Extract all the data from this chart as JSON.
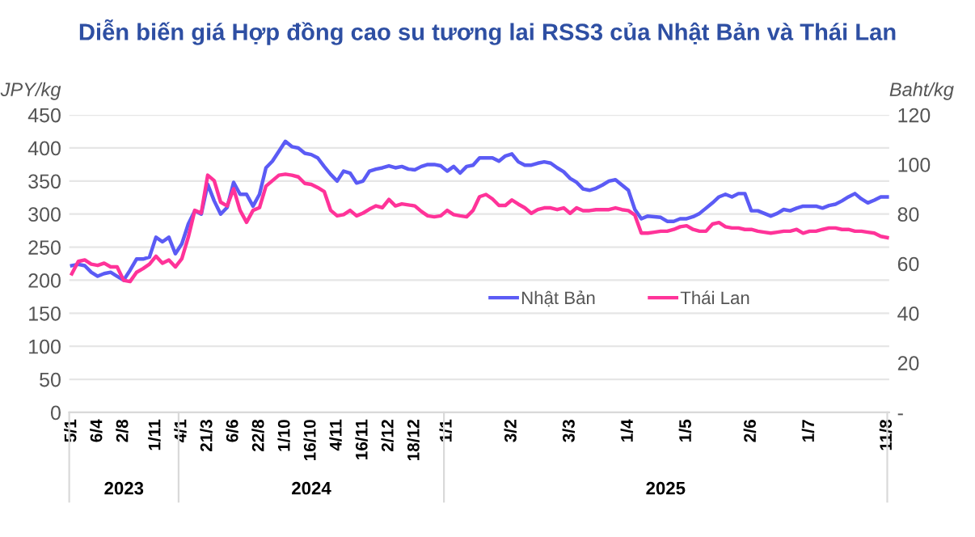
{
  "chart_data": {
    "type": "line",
    "title": "Diễn biến giá Hợp đồng cao su tương lai RSS3 của Nhật Bản và Thái Lan",
    "ylabel": "JPY/kg",
    "y2label": "Baht/kg",
    "categories": [
      "5/1",
      null,
      null,
      null,
      "6/4",
      null,
      null,
      null,
      "2/8",
      null,
      null,
      null,
      null,
      "1/11",
      null,
      null,
      null,
      "4/1",
      null,
      null,
      null,
      "21/3",
      null,
      null,
      null,
      "6/6",
      null,
      null,
      null,
      "22/8",
      null,
      null,
      null,
      "1/10",
      null,
      null,
      null,
      "16/10",
      null,
      null,
      null,
      "4/11",
      null,
      null,
      null,
      "16/11",
      null,
      null,
      null,
      "2/12",
      null,
      null,
      null,
      "18/12",
      null,
      null,
      null,
      null,
      "1/1",
      null,
      null,
      null,
      null,
      null,
      null,
      null,
      null,
      null,
      "3/2",
      null,
      null,
      null,
      null,
      null,
      null,
      null,
      null,
      "3/3",
      null,
      null,
      null,
      null,
      null,
      null,
      null,
      null,
      "1/4",
      null,
      null,
      null,
      null,
      null,
      null,
      null,
      null,
      "1/5",
      null,
      null,
      null,
      null,
      null,
      null,
      null,
      null,
      null,
      "2/6",
      null,
      null,
      null,
      null,
      null,
      null,
      null,
      null,
      "1/7",
      null,
      null,
      null,
      null,
      null,
      null,
      null,
      null,
      null,
      null,
      null,
      "11/8"
    ],
    "annotations": [
      "2023",
      "2024",
      "2025"
    ],
    "series": [
      {
        "name": "Nhật Bản",
        "color": "#5b5bf5",
        "values": [
          222,
          224,
          222,
          212,
          206,
          210,
          212,
          206,
          200,
          215,
          232,
          232,
          235,
          265,
          258,
          265,
          240,
          255,
          285,
          305,
          300,
          345,
          320,
          300,
          310,
          348,
          330,
          330,
          312,
          330,
          370,
          380,
          395,
          410,
          402,
          400,
          392,
          390,
          385,
          372,
          360,
          350,
          365,
          362,
          347,
          350,
          365,
          368,
          370,
          373,
          370,
          372,
          368,
          367,
          372,
          375,
          375,
          373,
          365,
          372,
          362,
          372,
          374,
          385,
          385,
          385,
          380,
          388,
          391,
          379,
          374,
          374,
          377,
          379,
          377,
          370,
          364,
          354,
          348,
          338,
          336,
          339,
          344,
          350,
          352,
          344,
          336,
          307,
          293,
          297,
          296,
          295,
          289,
          289,
          293,
          293,
          296,
          301,
          309,
          317,
          326,
          330,
          326,
          331,
          331,
          305,
          305,
          301,
          297,
          301,
          307,
          305,
          309,
          312,
          312,
          312,
          309,
          313,
          315,
          320,
          326,
          331,
          323,
          317,
          321,
          326,
          326
        ]
      },
      {
        "name": "Thái Lan",
        "color": "#ff3399",
        "axis": "y2",
        "values": [
          55.9,
          60.9,
          61.5,
          59.8,
          59.3,
          60.2,
          58.7,
          58.7,
          53.3,
          52.8,
          56.5,
          58,
          59.8,
          63,
          60.2,
          61.5,
          58.7,
          62,
          70.7,
          81.5,
          80.4,
          95.7,
          93.5,
          84.8,
          83.3,
          90.2,
          81.5,
          76.7,
          81.5,
          82.6,
          91.3,
          93.5,
          95.7,
          96.1,
          95.7,
          95,
          92.4,
          92,
          90.7,
          89.1,
          81.5,
          79.3,
          79.8,
          81.5,
          79.3,
          80.4,
          82,
          83.3,
          82.6,
          85.9,
          83.3,
          84.1,
          83.7,
          83.3,
          81.1,
          79.3,
          78.9,
          79.3,
          81.5,
          79.8,
          79.3,
          78.9,
          81.5,
          87,
          87.9,
          86.1,
          83.5,
          83.5,
          85.7,
          84,
          82.5,
          80.3,
          81.8,
          82.5,
          82.5,
          81.8,
          82.5,
          80.3,
          82.5,
          81.4,
          81.4,
          81.8,
          81.8,
          81.8,
          82.5,
          81.8,
          81.4,
          79.6,
          72.3,
          72.3,
          72.7,
          73.1,
          73.1,
          73.8,
          74.9,
          75.3,
          73.8,
          73.1,
          73.1,
          76,
          76.6,
          74.9,
          74.4,
          74.4,
          73.8,
          73.8,
          73.1,
          72.7,
          72.3,
          72.7,
          73.1,
          73.1,
          73.8,
          72.3,
          73.1,
          73.1,
          73.8,
          74.4,
          74.4,
          73.8,
          73.8,
          73.1,
          73.1,
          72.7,
          72.3,
          71,
          70.5
        ]
      }
    ],
    "ylim": [
      0,
      450
    ],
    "yticks": [
      0,
      50,
      100,
      150,
      200,
      250,
      300,
      350,
      400,
      450
    ],
    "y2lim": [
      0,
      120
    ],
    "y2ticks": [
      {
        "value": 0,
        "label": "-"
      },
      20,
      40,
      60,
      80,
      100,
      120
    ],
    "grid": "y",
    "legend": "right",
    "marker": "none",
    "line_style": "solid"
  }
}
